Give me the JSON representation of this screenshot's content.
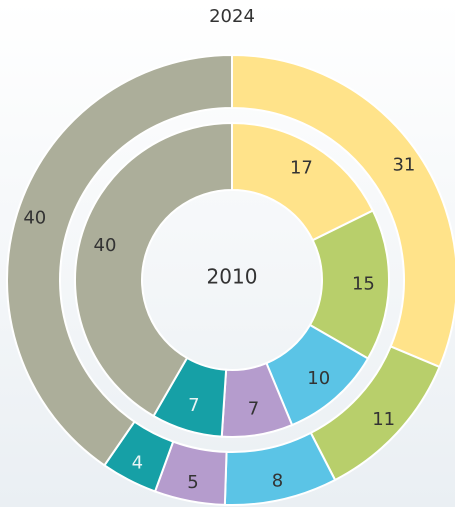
{
  "chart_data": {
    "type": "donut",
    "colors": [
      "#ffe38a",
      "#b8cf6b",
      "#5bc4e6",
      "#b59ccd",
      "#16a0a6",
      "#acae9a"
    ],
    "series": [
      {
        "name": "2024",
        "values": [
          31,
          11,
          8,
          5,
          4,
          40
        ]
      },
      {
        "name": "2010",
        "values": [
          17,
          15,
          10,
          7,
          7,
          40
        ]
      }
    ]
  }
}
